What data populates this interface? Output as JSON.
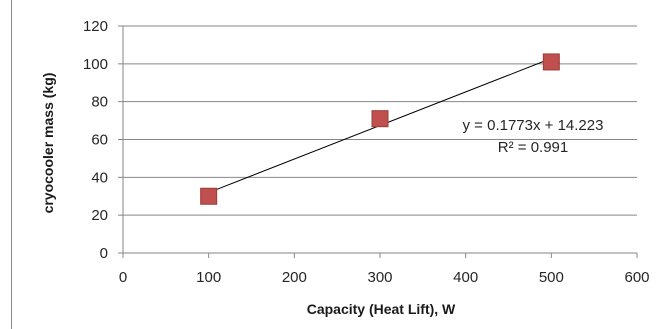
{
  "chart_data": {
    "type": "scatter",
    "title": "",
    "xlabel": "Capacity (Heat Lift), W",
    "ylabel": "cryocooler mass (kg)",
    "xlim": [
      0,
      600
    ],
    "ylim": [
      0,
      120
    ],
    "x_ticks": [
      0,
      100,
      200,
      300,
      400,
      500,
      600
    ],
    "y_ticks": [
      0,
      20,
      40,
      60,
      80,
      100,
      120
    ],
    "grid": "horizontal",
    "legend": "none",
    "series": [
      {
        "x": [
          100,
          300,
          500
        ],
        "y": [
          30,
          71,
          101
        ],
        "marker": "square",
        "color": "#c0504d",
        "marker_edge_color": "#9b3b38"
      }
    ],
    "trendline": {
      "type": "linear",
      "slope": 0.1773,
      "intercept": 14.223,
      "x_range": [
        100,
        500
      ],
      "color": "#000000",
      "equation_text": "y = 0.1773x + 14.223",
      "r2_text": "R² = 0.991"
    },
    "colors": {
      "grid": "#868686",
      "axis": "#868686"
    }
  }
}
